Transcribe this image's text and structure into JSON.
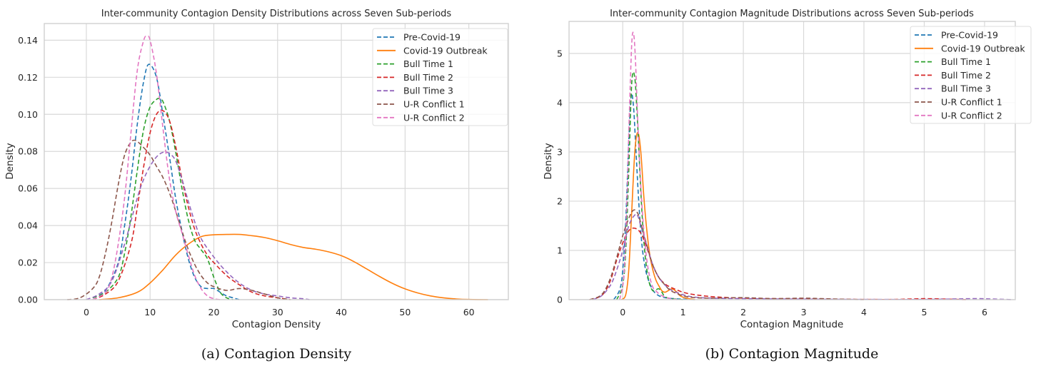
{
  "figure": {
    "captions": [
      "(a) Contagion Density",
      "(b) Contagion Magnitude"
    ]
  },
  "chart_data": [
    {
      "type": "line",
      "subtype": "kde",
      "title": "Inter-community Contagion Density Distributions across Seven Sub-periods",
      "xlabel": "Contagion Density",
      "ylabel": "Density",
      "xlim": [
        -6.6,
        66.2
      ],
      "ylim": [
        0,
        0.149
      ],
      "xticks": [
        0,
        10,
        20,
        30,
        40,
        50,
        60
      ],
      "xtick_labels": [
        "0",
        "10",
        "20",
        "30",
        "40",
        "50",
        "60"
      ],
      "yticks": [
        0,
        0.02,
        0.04,
        0.06,
        0.08,
        0.1,
        0.12,
        0.14
      ],
      "ytick_labels": [
        "0.00",
        "0.02",
        "0.04",
        "0.06",
        "0.08",
        "0.10",
        "0.12",
        "0.14"
      ],
      "grid": true,
      "legend": "top-right",
      "series": [
        {
          "name": "Pre-Covid-19",
          "color": "#1f77b4",
          "dash": true,
          "x": [
            1,
            3,
            5,
            6,
            7,
            8,
            9,
            9.8,
            11,
            12,
            13,
            14,
            15,
            16,
            17,
            18,
            19,
            20,
            21,
            22,
            23,
            24
          ],
          "y": [
            0.001,
            0.005,
            0.02,
            0.04,
            0.065,
            0.095,
            0.118,
            0.127,
            0.12,
            0.1,
            0.078,
            0.055,
            0.037,
            0.022,
            0.012,
            0.007,
            0.006,
            0.006,
            0.004,
            0.002,
            0.001,
            0.0
          ]
        },
        {
          "name": "Covid-19 Outbreak",
          "color": "#ff7f0e",
          "dash": false,
          "x": [
            2,
            5,
            8,
            10,
            12,
            14,
            16,
            18,
            20,
            22,
            24,
            26,
            28,
            30,
            32,
            34,
            36,
            38,
            40,
            42,
            44,
            46,
            48,
            50,
            52,
            54,
            56,
            58,
            60,
            63
          ],
          "y": [
            0.0,
            0.001,
            0.004,
            0.009,
            0.016,
            0.024,
            0.03,
            0.034,
            0.035,
            0.0352,
            0.0352,
            0.0345,
            0.0335,
            0.0318,
            0.0298,
            0.0282,
            0.0272,
            0.0258,
            0.0237,
            0.0205,
            0.0165,
            0.0125,
            0.0088,
            0.0058,
            0.0036,
            0.002,
            0.001,
            0.0004,
            0.0001,
            0.0
          ]
        },
        {
          "name": "Bull Time 1",
          "color": "#2ca02c",
          "dash": true,
          "x": [
            1,
            3,
            5,
            6,
            7,
            8,
            9,
            10,
            11,
            11.5,
            12,
            13,
            14,
            15,
            16,
            17,
            18,
            19,
            20,
            21,
            22,
            23
          ],
          "y": [
            0.001,
            0.004,
            0.012,
            0.025,
            0.045,
            0.07,
            0.092,
            0.104,
            0.108,
            0.1085,
            0.107,
            0.097,
            0.08,
            0.06,
            0.043,
            0.032,
            0.027,
            0.022,
            0.012,
            0.004,
            0.001,
            0.0
          ]
        },
        {
          "name": "Bull Time 2",
          "color": "#d62728",
          "dash": true,
          "x": [
            1,
            3,
            5,
            7,
            8,
            9,
            10,
            11,
            12,
            13,
            14,
            15,
            16,
            17,
            18,
            19,
            20,
            22,
            24,
            26,
            28,
            30,
            32
          ],
          "y": [
            0.0,
            0.003,
            0.01,
            0.03,
            0.05,
            0.072,
            0.09,
            0.1,
            0.102,
            0.097,
            0.083,
            0.065,
            0.05,
            0.038,
            0.03,
            0.024,
            0.02,
            0.013,
            0.008,
            0.004,
            0.002,
            0.001,
            0.0
          ]
        },
        {
          "name": "Bull Time 3",
          "color": "#9467bd",
          "dash": true,
          "x": [
            0,
            2,
            4,
            6,
            8,
            9,
            10,
            11,
            12,
            13,
            14,
            15,
            16,
            17,
            18,
            20,
            22,
            24,
            26,
            28,
            30,
            32,
            34,
            35
          ],
          "y": [
            0.0,
            0.003,
            0.01,
            0.03,
            0.055,
            0.065,
            0.072,
            0.077,
            0.0795,
            0.079,
            0.075,
            0.065,
            0.053,
            0.042,
            0.033,
            0.023,
            0.015,
            0.009,
            0.005,
            0.003,
            0.002,
            0.001,
            0.0005,
            0.0
          ]
        },
        {
          "name": "U-R Conflict 1",
          "color": "#8c564b",
          "dash": true,
          "x": [
            -3,
            -1,
            1,
            2,
            3,
            4,
            5,
            6,
            7,
            7.8,
            9,
            10,
            11,
            12,
            13,
            14,
            15,
            16,
            17,
            18,
            19,
            20,
            22,
            24,
            26,
            28,
            30,
            32
          ],
          "y": [
            0.0,
            0.001,
            0.006,
            0.012,
            0.025,
            0.042,
            0.062,
            0.078,
            0.085,
            0.0858,
            0.082,
            0.078,
            0.072,
            0.066,
            0.058,
            0.048,
            0.037,
            0.027,
            0.019,
            0.013,
            0.009,
            0.007,
            0.005,
            0.006,
            0.005,
            0.003,
            0.001,
            0.0
          ]
        },
        {
          "name": "U-R Conflict 2",
          "color": "#e377c2",
          "dash": true,
          "x": [
            1,
            3,
            4,
            5,
            6,
            7,
            8,
            9,
            9.5,
            10,
            11,
            12,
            13,
            14,
            15,
            16,
            17,
            18,
            19,
            20,
            21
          ],
          "y": [
            0.0,
            0.004,
            0.012,
            0.03,
            0.055,
            0.09,
            0.124,
            0.14,
            0.142,
            0.14,
            0.122,
            0.093,
            0.066,
            0.048,
            0.036,
            0.024,
            0.013,
            0.006,
            0.002,
            0.0005,
            0.0
          ]
        }
      ]
    },
    {
      "type": "line",
      "subtype": "kde",
      "title": "Inter-community Contagion Magnitude Distributions across Seven Sub-periods",
      "xlabel": "Contagion Magnitude",
      "ylabel": "Density",
      "xlim": [
        -0.89,
        6.51
      ],
      "ylim": [
        0,
        5.65
      ],
      "xticks": [
        0,
        1,
        2,
        3,
        4,
        5,
        6
      ],
      "xtick_labels": [
        "0",
        "1",
        "2",
        "3",
        "4",
        "5",
        "6"
      ],
      "yticks": [
        0,
        1,
        2,
        3,
        4,
        5
      ],
      "ytick_labels": [
        "0",
        "1",
        "2",
        "3",
        "4",
        "5"
      ],
      "grid": true,
      "legend": "top-right",
      "series": [
        {
          "name": "Pre-Covid-19",
          "color": "#1f77b4",
          "dash": true,
          "x": [
            -0.15,
            -0.05,
            0.0,
            0.05,
            0.1,
            0.14,
            0.18,
            0.22,
            0.27,
            0.32,
            0.38,
            0.45,
            0.52,
            0.6,
            0.7,
            0.85,
            1.0,
            1.2
          ],
          "y": [
            0.0,
            0.2,
            0.6,
            1.6,
            3.2,
            4.15,
            3.9,
            3.0,
            1.9,
            1.1,
            0.6,
            0.32,
            0.16,
            0.08,
            0.04,
            0.02,
            0.01,
            0.0
          ]
        },
        {
          "name": "Covid-19 Outbreak",
          "color": "#ff7f0e",
          "dash": false,
          "x": [
            -0.02,
            0.05,
            0.1,
            0.15,
            0.2,
            0.25,
            0.3,
            0.35,
            0.4,
            0.45,
            0.5,
            0.55,
            0.6,
            0.65,
            0.7,
            0.75,
            0.82,
            0.9,
            0.95,
            1.05,
            1.2
          ],
          "y": [
            0.0,
            0.1,
            0.6,
            1.8,
            3.0,
            3.4,
            3.0,
            2.1,
            1.4,
            0.9,
            0.6,
            0.4,
            0.28,
            0.18,
            0.15,
            0.18,
            0.22,
            0.15,
            0.08,
            0.03,
            0.0
          ]
        },
        {
          "name": "Bull Time 1",
          "color": "#2ca02c",
          "dash": true,
          "x": [
            -0.1,
            0.0,
            0.05,
            0.1,
            0.15,
            0.2,
            0.25,
            0.3,
            0.35,
            0.4,
            0.45,
            0.5,
            0.55,
            0.6,
            0.65,
            0.7,
            0.8,
            0.9,
            1.0
          ],
          "y": [
            0.0,
            0.3,
            1.0,
            2.6,
            4.4,
            4.5,
            3.5,
            2.2,
            1.2,
            0.6,
            0.3,
            0.18,
            0.2,
            0.22,
            0.15,
            0.06,
            0.02,
            0.01,
            0.0
          ]
        },
        {
          "name": "Bull Time 2",
          "color": "#d62728",
          "dash": true,
          "x": [
            -0.55,
            -0.4,
            -0.3,
            -0.2,
            -0.1,
            0.0,
            0.1,
            0.2,
            0.3,
            0.4,
            0.5,
            0.6,
            0.7,
            0.8,
            1.0,
            1.2,
            1.5,
            2.0,
            2.5,
            3.0,
            3.5,
            4.0,
            4.5,
            5.0,
            5.4,
            5.7
          ],
          "y": [
            0.0,
            0.05,
            0.15,
            0.4,
            0.8,
            1.15,
            1.4,
            1.45,
            1.35,
            1.05,
            0.7,
            0.45,
            0.32,
            0.25,
            0.15,
            0.1,
            0.06,
            0.03,
            0.02,
            0.02,
            0.01,
            0.005,
            0.005,
            0.02,
            0.01,
            0.0
          ]
        },
        {
          "name": "Bull Time 3",
          "color": "#9467bd",
          "dash": true,
          "x": [
            -0.5,
            -0.35,
            -0.2,
            -0.1,
            0.0,
            0.1,
            0.2,
            0.25,
            0.3,
            0.4,
            0.5,
            0.6,
            0.7,
            0.8,
            1.0,
            1.2,
            1.5,
            2.0,
            3.0,
            4.0,
            5.0,
            5.8,
            6.1,
            6.45
          ],
          "y": [
            0.0,
            0.08,
            0.3,
            0.6,
            1.0,
            1.5,
            1.72,
            1.7,
            1.5,
            1.1,
            0.7,
            0.45,
            0.3,
            0.2,
            0.1,
            0.05,
            0.03,
            0.02,
            0.01,
            0.005,
            0.005,
            0.02,
            0.015,
            0.0
          ]
        },
        {
          "name": "U-R Conflict 1",
          "color": "#8c564b",
          "dash": true,
          "x": [
            -0.55,
            -0.4,
            -0.3,
            -0.2,
            -0.1,
            0.0,
            0.1,
            0.18,
            0.25,
            0.3,
            0.4,
            0.5,
            0.6,
            0.7,
            0.8,
            1.0,
            1.2,
            1.5,
            2.0,
            2.5,
            3.0,
            3.3,
            3.6,
            4.0
          ],
          "y": [
            0.0,
            0.06,
            0.18,
            0.45,
            0.85,
            1.3,
            1.65,
            1.82,
            1.75,
            1.55,
            1.1,
            0.7,
            0.45,
            0.3,
            0.18,
            0.08,
            0.04,
            0.03,
            0.04,
            0.02,
            0.03,
            0.02,
            0.01,
            0.0
          ]
        },
        {
          "name": "U-R Conflict 2",
          "color": "#e377c2",
          "dash": true,
          "x": [
            -0.05,
            0.02,
            0.07,
            0.11,
            0.15,
            0.18,
            0.21,
            0.25,
            0.3,
            0.35,
            0.4,
            0.45,
            0.5,
            0.55,
            0.6,
            0.7,
            0.8,
            0.9
          ],
          "y": [
            0.0,
            0.5,
            2.0,
            3.8,
            5.2,
            5.4,
            4.9,
            3.6,
            2.3,
            1.4,
            0.8,
            0.45,
            0.25,
            0.18,
            0.12,
            0.05,
            0.02,
            0.0
          ]
        }
      ]
    }
  ]
}
